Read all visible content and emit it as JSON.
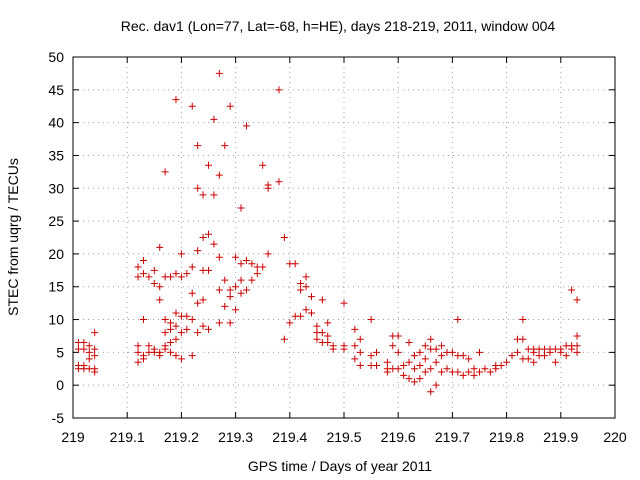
{
  "chart_data": {
    "type": "scatter",
    "title": "Rec. dav1 (Lon=77, Lat=-68, h=HE), days 218-219, 2011, window 004",
    "xlabel": "GPS time / Days of year 2011",
    "ylabel": "STEC from uqrg / TECUs",
    "xlim": [
      219,
      220
    ],
    "ylim": [
      -5,
      50
    ],
    "xticks": [
      "219",
      "219.1",
      "219.2",
      "219.3",
      "219.4",
      "219.5",
      "219.6",
      "219.7",
      "219.8",
      "219.9",
      "220"
    ],
    "yticks": [
      "-5",
      "0",
      "5",
      "10",
      "15",
      "20",
      "25",
      "30",
      "35",
      "40",
      "45",
      "50"
    ],
    "grid": true,
    "marker": "plus",
    "color": "#cc0000",
    "points": [
      [
        219.01,
        6.5
      ],
      [
        219.01,
        5.5
      ],
      [
        219.01,
        3.0
      ],
      [
        219.01,
        2.5
      ],
      [
        219.02,
        6.5
      ],
      [
        219.02,
        5.5
      ],
      [
        219.02,
        3.0
      ],
      [
        219.02,
        2.5
      ],
      [
        219.03,
        6.0
      ],
      [
        219.03,
        5.0
      ],
      [
        219.03,
        4.0
      ],
      [
        219.03,
        2.5
      ],
      [
        219.04,
        8.0
      ],
      [
        219.04,
        5.5
      ],
      [
        219.04,
        4.5
      ],
      [
        219.04,
        2.5
      ],
      [
        219.04,
        2.0
      ],
      [
        219.12,
        18.0
      ],
      [
        219.12,
        16.5
      ],
      [
        219.12,
        6.0
      ],
      [
        219.12,
        5.0
      ],
      [
        219.12,
        3.5
      ],
      [
        219.13,
        19.0
      ],
      [
        219.13,
        17.0
      ],
      [
        219.13,
        10.0
      ],
      [
        219.13,
        4.5
      ],
      [
        219.13,
        4.0
      ],
      [
        219.14,
        16.5
      ],
      [
        219.14,
        6.0
      ],
      [
        219.14,
        5.0
      ],
      [
        219.15,
        17.5
      ],
      [
        219.15,
        15.5
      ],
      [
        219.15,
        5.5
      ],
      [
        219.15,
        5.0
      ],
      [
        219.16,
        21.0
      ],
      [
        219.16,
        15.0
      ],
      [
        219.16,
        13.0
      ],
      [
        219.16,
        5.0
      ],
      [
        219.16,
        4.5
      ],
      [
        219.17,
        32.5
      ],
      [
        219.17,
        16.5
      ],
      [
        219.17,
        10.0
      ],
      [
        219.17,
        8.0
      ],
      [
        219.17,
        6.0
      ],
      [
        219.17,
        5.5
      ],
      [
        219.18,
        16.5
      ],
      [
        219.18,
        9.5
      ],
      [
        219.18,
        8.5
      ],
      [
        219.18,
        6.5
      ],
      [
        219.18,
        5.0
      ],
      [
        219.19,
        43.5
      ],
      [
        219.19,
        17.0
      ],
      [
        219.19,
        11.0
      ],
      [
        219.19,
        9.0
      ],
      [
        219.19,
        7.0
      ],
      [
        219.19,
        4.5
      ],
      [
        219.2,
        20.0
      ],
      [
        219.2,
        16.5
      ],
      [
        219.2,
        10.5
      ],
      [
        219.2,
        8.0
      ],
      [
        219.2,
        4.0
      ],
      [
        219.21,
        17.0
      ],
      [
        219.21,
        10.5
      ],
      [
        219.21,
        8.5
      ],
      [
        219.22,
        42.5
      ],
      [
        219.22,
        18.0
      ],
      [
        219.22,
        14.0
      ],
      [
        219.22,
        10.0
      ],
      [
        219.22,
        4.5
      ],
      [
        219.23,
        36.5
      ],
      [
        219.23,
        30.0
      ],
      [
        219.23,
        20.5
      ],
      [
        219.23,
        12.5
      ],
      [
        219.23,
        8.0
      ],
      [
        219.24,
        29.0
      ],
      [
        219.24,
        22.5
      ],
      [
        219.24,
        17.5
      ],
      [
        219.24,
        13.0
      ],
      [
        219.24,
        9.0
      ],
      [
        219.25,
        33.5
      ],
      [
        219.25,
        23.0
      ],
      [
        219.25,
        17.5
      ],
      [
        219.25,
        8.5
      ],
      [
        219.26,
        40.5
      ],
      [
        219.26,
        29.0
      ],
      [
        219.26,
        21.5
      ],
      [
        219.27,
        47.5
      ],
      [
        219.27,
        32.0
      ],
      [
        219.27,
        19.5
      ],
      [
        219.27,
        14.5
      ],
      [
        219.27,
        9.5
      ],
      [
        219.28,
        36.5
      ],
      [
        219.28,
        16.0
      ],
      [
        219.28,
        12.0
      ],
      [
        219.29,
        42.5
      ],
      [
        219.29,
        14.5
      ],
      [
        219.29,
        13.5
      ],
      [
        219.29,
        9.5
      ],
      [
        219.3,
        19.5
      ],
      [
        219.3,
        15.0
      ],
      [
        219.3,
        11.5
      ],
      [
        219.31,
        27.0
      ],
      [
        219.31,
        18.5
      ],
      [
        219.31,
        16.0
      ],
      [
        219.31,
        14.0
      ],
      [
        219.32,
        39.5
      ],
      [
        219.32,
        19.0
      ],
      [
        219.32,
        14.5
      ],
      [
        219.33,
        18.5
      ],
      [
        219.33,
        16.0
      ],
      [
        219.34,
        18.0
      ],
      [
        219.34,
        17.0
      ],
      [
        219.35,
        33.5
      ],
      [
        219.35,
        18.0
      ],
      [
        219.36,
        30.5
      ],
      [
        219.36,
        30.0
      ],
      [
        219.36,
        20.0
      ],
      [
        219.38,
        45.0
      ],
      [
        219.38,
        31.0
      ],
      [
        219.39,
        22.5
      ],
      [
        219.39,
        7.0
      ],
      [
        219.4,
        18.5
      ],
      [
        219.4,
        9.5
      ],
      [
        219.41,
        18.5
      ],
      [
        219.41,
        10.5
      ],
      [
        219.42,
        15.5
      ],
      [
        219.42,
        14.5
      ],
      [
        219.42,
        10.5
      ],
      [
        219.43,
        16.5
      ],
      [
        219.43,
        15.0
      ],
      [
        219.43,
        11.5
      ],
      [
        219.44,
        13.5
      ],
      [
        219.44,
        11.0
      ],
      [
        219.45,
        9.0
      ],
      [
        219.45,
        8.0
      ],
      [
        219.45,
        7.0
      ],
      [
        219.46,
        13.0
      ],
      [
        219.46,
        8.0
      ],
      [
        219.46,
        6.5
      ],
      [
        219.47,
        9.5
      ],
      [
        219.47,
        7.5
      ],
      [
        219.47,
        6.5
      ],
      [
        219.48,
        6.0
      ],
      [
        219.48,
        5.5
      ],
      [
        219.5,
        12.5
      ],
      [
        219.5,
        6.0
      ],
      [
        219.5,
        5.5
      ],
      [
        219.52,
        8.5
      ],
      [
        219.52,
        6.0
      ],
      [
        219.52,
        4.0
      ],
      [
        219.53,
        7.0
      ],
      [
        219.53,
        5.0
      ],
      [
        219.53,
        3.0
      ],
      [
        219.55,
        10.0
      ],
      [
        219.55,
        4.5
      ],
      [
        219.55,
        3.0
      ],
      [
        219.56,
        5.0
      ],
      [
        219.56,
        3.0
      ],
      [
        219.58,
        3.5
      ],
      [
        219.58,
        2.5
      ],
      [
        219.58,
        2.0
      ],
      [
        219.59,
        7.5
      ],
      [
        219.59,
        6.0
      ],
      [
        219.59,
        2.5
      ],
      [
        219.6,
        7.5
      ],
      [
        219.6,
        5.0
      ],
      [
        219.6,
        2.5
      ],
      [
        219.61,
        3.0
      ],
      [
        219.61,
        1.5
      ],
      [
        219.62,
        6.5
      ],
      [
        219.62,
        3.5
      ],
      [
        219.62,
        1.0
      ],
      [
        219.63,
        4.5
      ],
      [
        219.63,
        2.5
      ],
      [
        219.63,
        0.5
      ],
      [
        219.64,
        5.0
      ],
      [
        219.64,
        3.0
      ],
      [
        219.64,
        1.0
      ],
      [
        219.65,
        6.0
      ],
      [
        219.65,
        4.0
      ],
      [
        219.65,
        2.0
      ],
      [
        219.66,
        7.0
      ],
      [
        219.66,
        5.5
      ],
      [
        219.66,
        2.5
      ],
      [
        219.66,
        -1.0
      ],
      [
        219.67,
        5.5
      ],
      [
        219.67,
        3.5
      ],
      [
        219.67,
        0.0
      ],
      [
        219.68,
        6.0
      ],
      [
        219.68,
        4.5
      ],
      [
        219.68,
        2.0
      ],
      [
        219.69,
        5.0
      ],
      [
        219.69,
        2.5
      ],
      [
        219.7,
        5.0
      ],
      [
        219.7,
        2.0
      ],
      [
        219.71,
        10.0
      ],
      [
        219.71,
        4.5
      ],
      [
        219.71,
        2.0
      ],
      [
        219.72,
        4.5
      ],
      [
        219.72,
        1.5
      ],
      [
        219.73,
        4.0
      ],
      [
        219.73,
        2.0
      ],
      [
        219.74,
        2.5
      ],
      [
        219.74,
        1.5
      ],
      [
        219.75,
        5.0
      ],
      [
        219.75,
        2.0
      ],
      [
        219.76,
        2.5
      ],
      [
        219.77,
        2.0
      ],
      [
        219.78,
        3.0
      ],
      [
        219.78,
        2.5
      ],
      [
        219.79,
        3.0
      ],
      [
        219.8,
        3.5
      ],
      [
        219.81,
        4.5
      ],
      [
        219.82,
        7.0
      ],
      [
        219.82,
        5.0
      ],
      [
        219.83,
        10.0
      ],
      [
        219.83,
        7.0
      ],
      [
        219.83,
        4.0
      ],
      [
        219.84,
        5.5
      ],
      [
        219.84,
        4.0
      ],
      [
        219.85,
        5.5
      ],
      [
        219.85,
        5.0
      ],
      [
        219.85,
        3.5
      ],
      [
        219.86,
        5.5
      ],
      [
        219.86,
        4.5
      ],
      [
        219.87,
        5.5
      ],
      [
        219.87,
        4.5
      ],
      [
        219.88,
        5.5
      ],
      [
        219.88,
        5.0
      ],
      [
        219.89,
        5.5
      ],
      [
        219.89,
        3.5
      ],
      [
        219.9,
        5.5
      ],
      [
        219.9,
        5.0
      ],
      [
        219.91,
        6.0
      ],
      [
        219.91,
        4.5
      ],
      [
        219.92,
        14.5
      ],
      [
        219.92,
        6.0
      ],
      [
        219.92,
        5.5
      ],
      [
        219.93,
        13.0
      ],
      [
        219.93,
        7.5
      ],
      [
        219.93,
        6.0
      ],
      [
        219.93,
        5.0
      ]
    ]
  }
}
